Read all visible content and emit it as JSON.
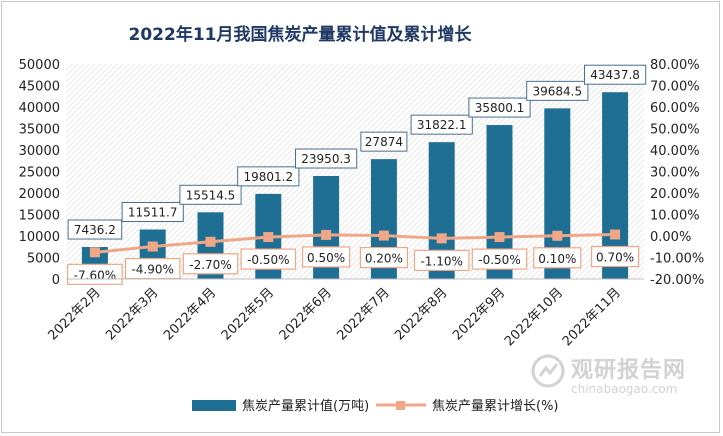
{
  "chart_data": {
    "type": "bar+line",
    "title": "2022年11月我国焦炭产量累计值及累计增长",
    "categories": [
      "2022年2月",
      "2022年3月",
      "2022年4月",
      "2022年5月",
      "2022年6月",
      "2022年7月",
      "2022年8月",
      "2022年9月",
      "2022年10月",
      "2022年11月"
    ],
    "series": [
      {
        "name": "焦炭产量累计值(万吨)",
        "type": "bar",
        "axis": "left",
        "color": "#1f6e94",
        "values": [
          7436.2,
          11511.7,
          15514.5,
          19801.2,
          23950.3,
          27874,
          31822.1,
          35800.1,
          39684.5,
          43437.8
        ],
        "labels": [
          "7436.2",
          "11511.7",
          "15514.5",
          "19801.2",
          "23950.3",
          "27874",
          "31822.1",
          "35800.1",
          "39684.5",
          "43437.8"
        ]
      },
      {
        "name": "焦炭产量累计增长(%)",
        "type": "line",
        "axis": "right",
        "color": "#f0a787",
        "values": [
          -7.6,
          -4.9,
          -2.7,
          -0.5,
          0.5,
          0.2,
          -1.1,
          -0.5,
          0.1,
          0.7
        ],
        "labels": [
          "-7.60%",
          "-4.90%",
          "-2.70%",
          "-0.50%",
          "0.50%",
          "0.20%",
          "-1.10%",
          "-0.50%",
          "0.10%",
          "0.70%"
        ]
      }
    ],
    "y_left": {
      "min": 0,
      "max": 50000,
      "ticks": [
        "0",
        "5000",
        "10000",
        "15000",
        "20000",
        "25000",
        "30000",
        "35000",
        "40000",
        "45000",
        "50000"
      ]
    },
    "y_right": {
      "min": -20,
      "max": 80,
      "ticks": [
        "-20.00%",
        "-10.00%",
        "0.00%",
        "10.00%",
        "20.00%",
        "30.00%",
        "40.00%",
        "50.00%",
        "60.00%",
        "70.00%",
        "80.00%"
      ]
    },
    "legend_position": "bottom"
  },
  "watermark": {
    "cn": "观研报告网",
    "en": "chinabaogao.com"
  }
}
